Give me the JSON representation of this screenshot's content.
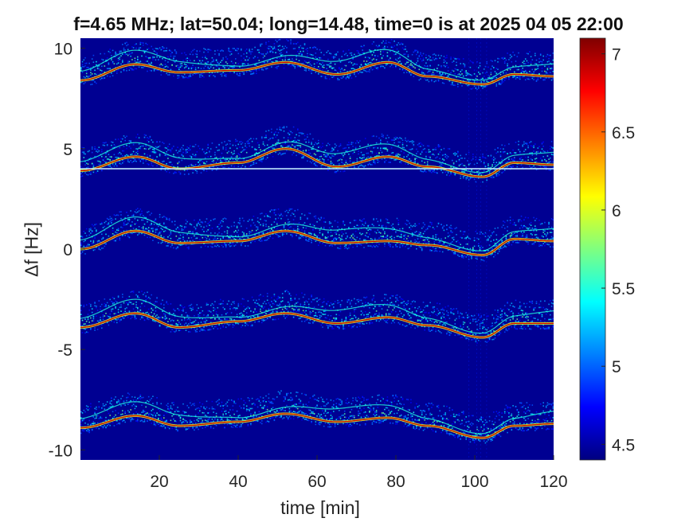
{
  "title": "f=4.65 MHz;  lat=50.04; long=14.48, time=0 is at 2025 04 05 22:00",
  "chart_data": {
    "type": "heatmap",
    "title": "f=4.65 MHz;  lat=50.04; long=14.48, time=0 is at 2025 04 05 22:00",
    "xlabel": "time [min]",
    "ylabel": "Δf [Hz]",
    "xlim": [
      0,
      120
    ],
    "ylim": [
      -10.5,
      10.5
    ],
    "xticks": [
      20,
      40,
      60,
      80,
      100,
      120
    ],
    "xtick_labels": [
      "20",
      "40",
      "60",
      "80",
      "100",
      "120"
    ],
    "yticks": [
      -10,
      -5,
      0,
      5,
      10
    ],
    "ytick_labels": [
      "-10",
      "-5",
      "0",
      "5",
      "10"
    ],
    "colorbar": {
      "range": [
        4.4,
        7.1
      ],
      "ticks": [
        4.5,
        5,
        5.5,
        6,
        6.5,
        7
      ],
      "tick_labels": [
        "4.5",
        "5",
        "5.5",
        "6",
        "6.5",
        "7"
      ],
      "colormap": "jet"
    },
    "background_value": 4.45,
    "horizontal_line": {
      "y": 4.0
    },
    "traces": [
      {
        "points": [
          [
            0,
            8.4
          ],
          [
            14,
            9.2
          ],
          [
            25,
            8.8
          ],
          [
            40,
            8.9
          ],
          [
            52,
            9.3
          ],
          [
            65,
            8.7
          ],
          [
            78,
            9.3
          ],
          [
            88,
            8.6
          ],
          [
            102,
            8.2
          ],
          [
            110,
            8.7
          ],
          [
            120,
            8.6
          ]
        ]
      },
      {
        "points": [
          [
            0,
            3.9
          ],
          [
            14,
            4.6
          ],
          [
            25,
            4.0
          ],
          [
            40,
            4.3
          ],
          [
            52,
            5.0
          ],
          [
            65,
            4.1
          ],
          [
            78,
            4.6
          ],
          [
            88,
            4.1
          ],
          [
            102,
            3.6
          ],
          [
            110,
            4.3
          ],
          [
            120,
            4.2
          ]
        ]
      },
      {
        "points": [
          [
            0,
            0.0
          ],
          [
            14,
            0.9
          ],
          [
            25,
            0.3
          ],
          [
            40,
            0.4
          ],
          [
            52,
            0.9
          ],
          [
            65,
            0.3
          ],
          [
            78,
            0.4
          ],
          [
            88,
            0.2
          ],
          [
            102,
            -0.3
          ],
          [
            110,
            0.5
          ],
          [
            120,
            0.4
          ]
        ]
      },
      {
        "points": [
          [
            0,
            -3.9
          ],
          [
            14,
            -3.2
          ],
          [
            25,
            -3.9
          ],
          [
            40,
            -3.6
          ],
          [
            52,
            -3.2
          ],
          [
            65,
            -3.7
          ],
          [
            78,
            -3.4
          ],
          [
            88,
            -3.8
          ],
          [
            102,
            -4.4
          ],
          [
            110,
            -3.7
          ],
          [
            120,
            -3.7
          ]
        ]
      },
      {
        "points": [
          [
            0,
            -8.9
          ],
          [
            14,
            -8.3
          ],
          [
            25,
            -8.8
          ],
          [
            40,
            -8.6
          ],
          [
            52,
            -8.2
          ],
          [
            65,
            -8.6
          ],
          [
            78,
            -8.4
          ],
          [
            88,
            -8.8
          ],
          [
            102,
            -9.4
          ],
          [
            110,
            -8.8
          ],
          [
            120,
            -8.7
          ]
        ]
      }
    ]
  }
}
